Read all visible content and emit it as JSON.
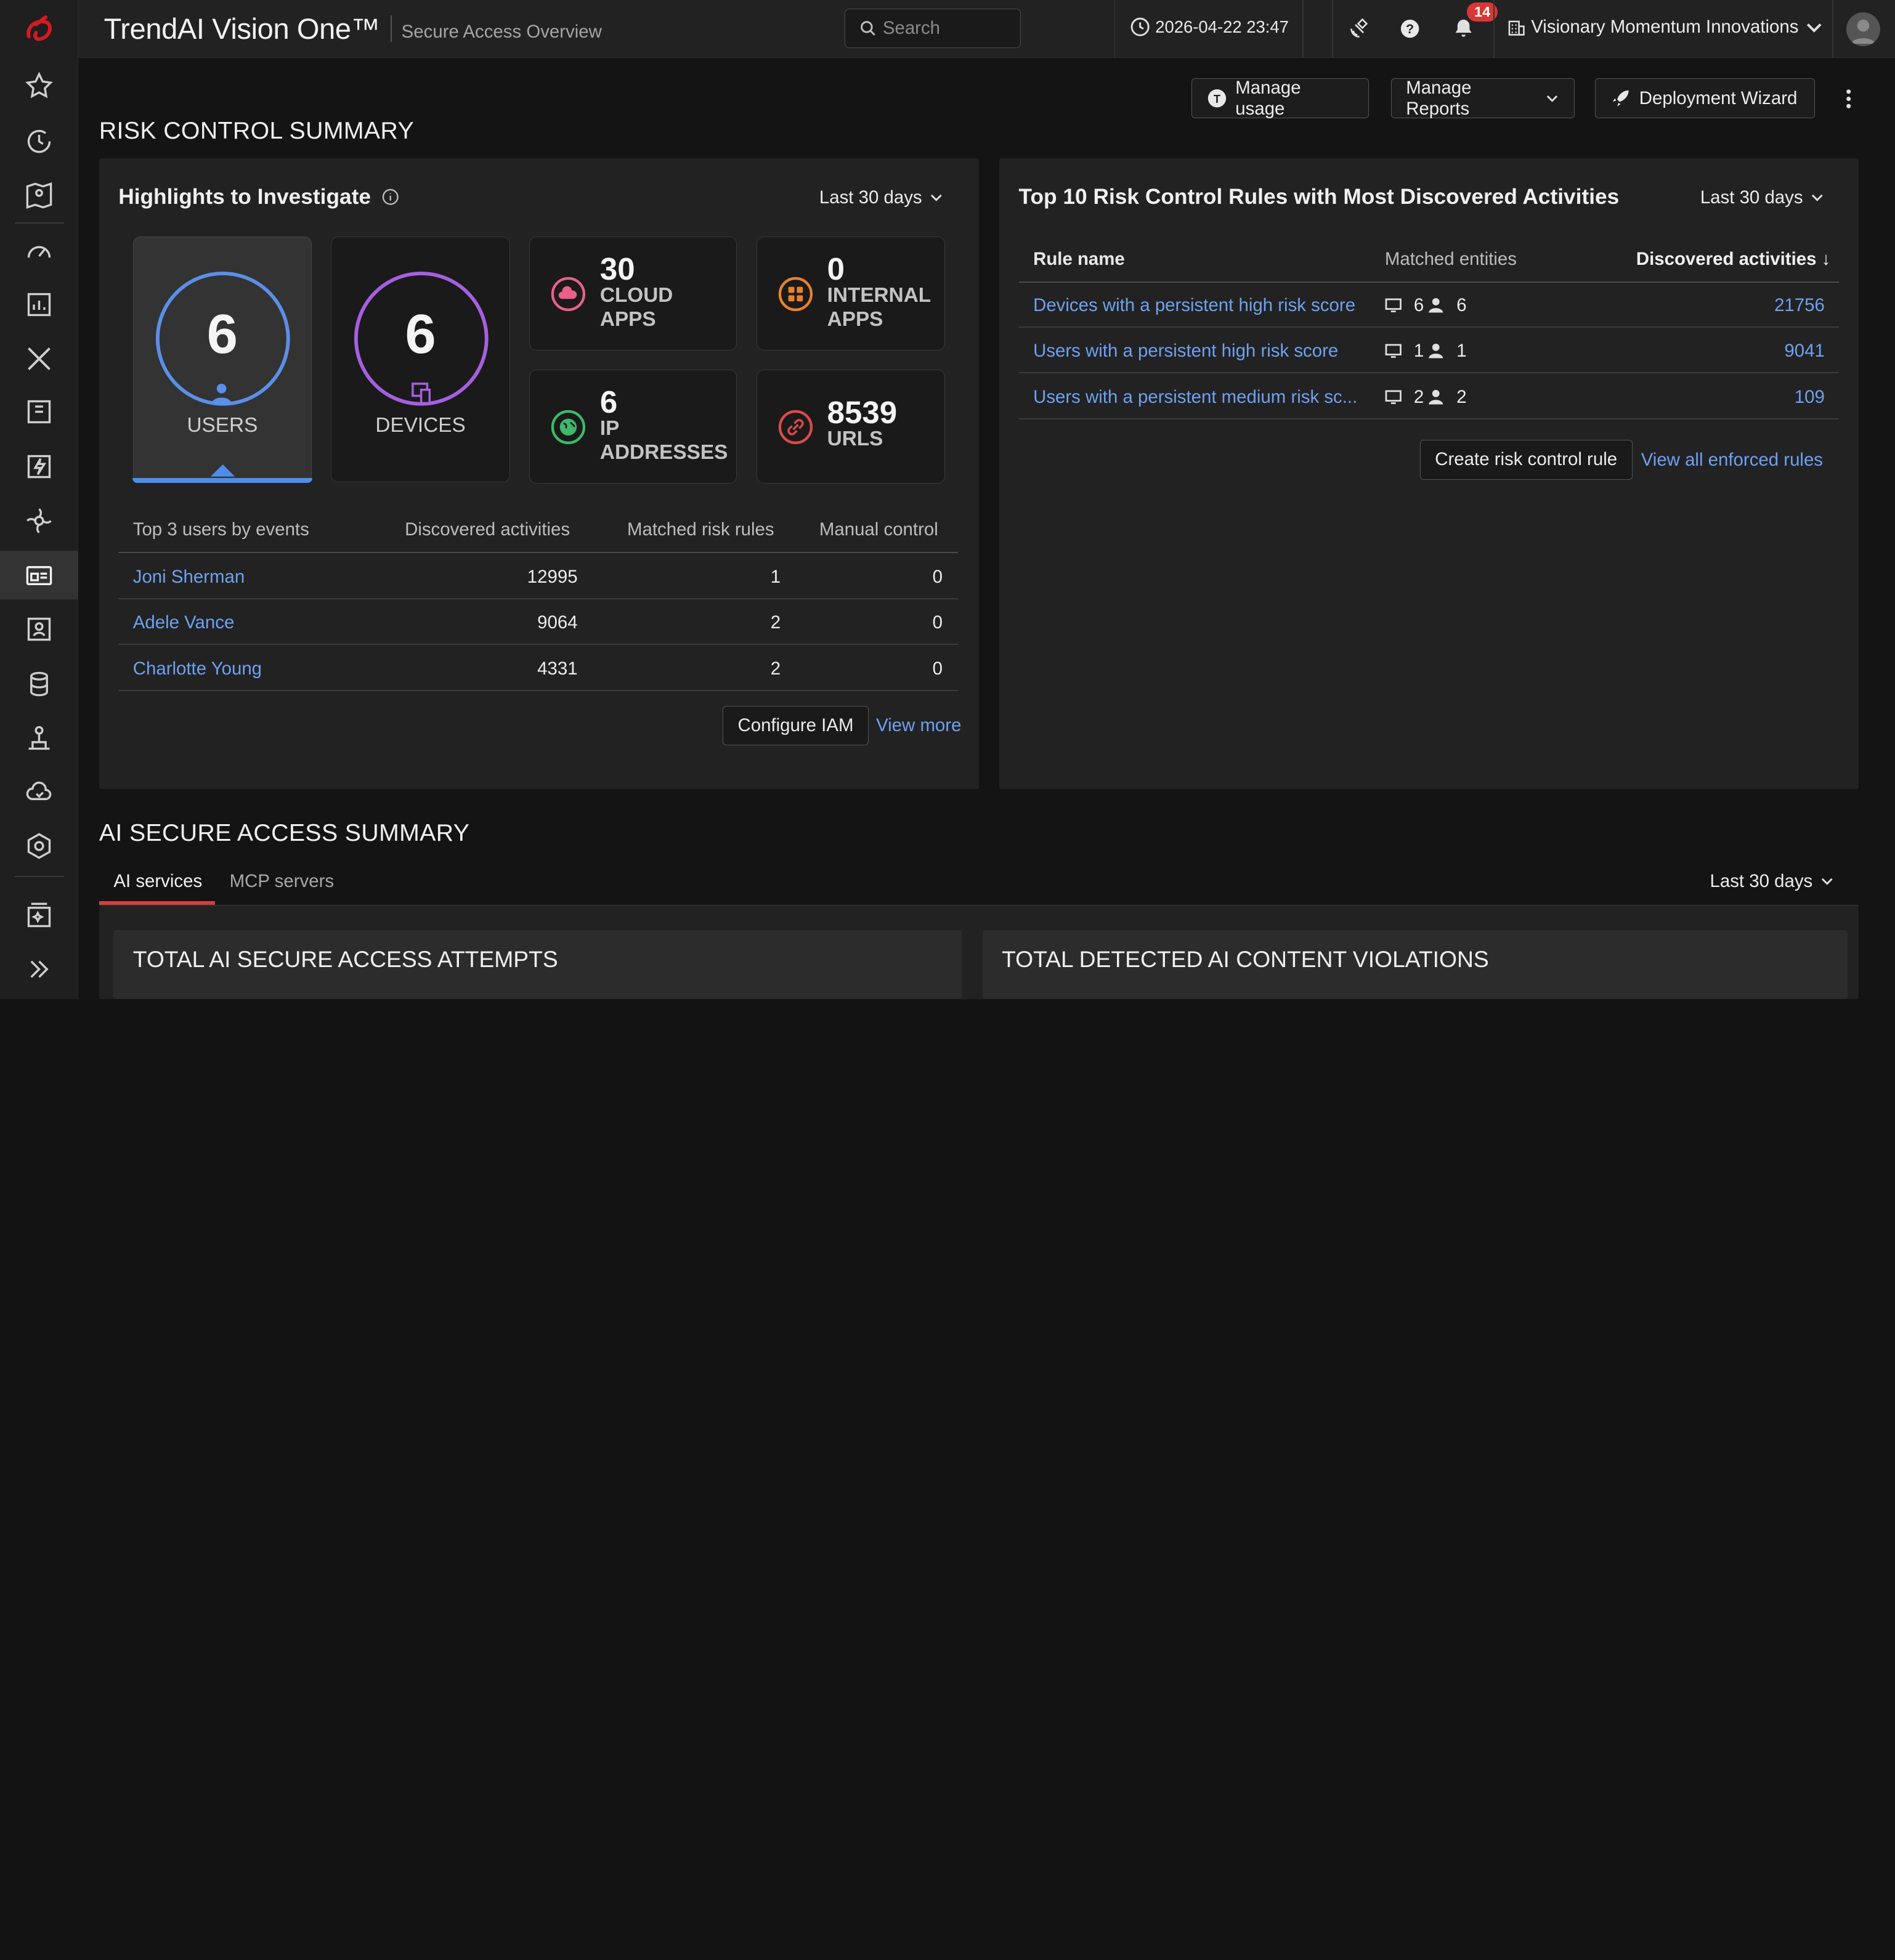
{
  "header": {
    "brand": "TrendAI Vision One™",
    "subtitle": "Secure Access Overview",
    "search_placeholder": "Search",
    "datetime": "2026-04-22 23:47",
    "notification_count": "14",
    "org_name": "Visionary Momentum Innovations"
  },
  "actions": {
    "manage_usage": "Manage usage",
    "manage_reports": "Manage Reports",
    "deployment_wizard": "Deployment Wizard"
  },
  "risk_summary": {
    "title": "RISK CONTROL SUMMARY",
    "highlights": {
      "title": "Highlights to Investigate",
      "range": "Last 30 days",
      "users": {
        "value": "6",
        "label": "USERS"
      },
      "devices": {
        "value": "6",
        "label": "DEVICES"
      },
      "cloud_apps": {
        "value": "30",
        "label1": "CLOUD",
        "label2": "APPS"
      },
      "internal_apps": {
        "value": "0",
        "label1": "INTERNAL",
        "label2": "APPS"
      },
      "ip_addresses": {
        "value": "6",
        "label1": "IP",
        "label2": "ADDRESSES"
      },
      "urls": {
        "value": "8539",
        "label1": "URLS"
      },
      "table": {
        "headers": [
          "Top 3 users by events",
          "Discovered activities",
          "Matched risk rules",
          "Manual control"
        ],
        "rows": [
          {
            "name": "Joni Sherman",
            "activities": "12995",
            "rules": "1",
            "manual": "0"
          },
          {
            "name": "Adele Vance",
            "activities": "9064",
            "rules": "2",
            "manual": "0"
          },
          {
            "name": "Charlotte Young",
            "activities": "4331",
            "rules": "2",
            "manual": "0"
          }
        ]
      },
      "configure_iam": "Configure IAM",
      "view_more": "View more"
    },
    "top_rules": {
      "title": "Top 10 Risk Control Rules with Most Discovered Activities",
      "range": "Last 30 days",
      "headers": [
        "Rule name",
        "Matched entities",
        "Discovered activities ↓"
      ],
      "rows": [
        {
          "rule": "Devices with a persistent high risk score",
          "devices": "6",
          "users": "6",
          "activities": "21756"
        },
        {
          "rule": "Users with a persistent high risk score",
          "devices": "1",
          "users": "1",
          "activities": "9041"
        },
        {
          "rule": "Users with a persistent medium risk sc...",
          "devices": "2",
          "users": "2",
          "activities": "109"
        }
      ],
      "create_rule": "Create risk control rule",
      "view_all": "View all enforced rules"
    }
  },
  "ai_summary": {
    "title": "AI SECURE ACCESS SUMMARY",
    "tabs": [
      "AI services",
      "MCP servers"
    ],
    "range": "Last 30 days",
    "card1_title": "TOTAL AI SECURE ACCESS ATTEMPTS",
    "card2_title": "TOTAL DETECTED AI CONTENT VIOLATIONS"
  },
  "colors": {
    "accent_blue": "#4d8eea",
    "users_ring": "#5b8fe8",
    "devices_ring": "#a55fe0",
    "cloud_icon": "#e8608a",
    "internal_icon": "#e8822e",
    "ip_icon": "#3fb86a",
    "url_icon": "#dc4a4a",
    "link": "#6ea1f0",
    "tab_underline": "#e03a3a"
  }
}
